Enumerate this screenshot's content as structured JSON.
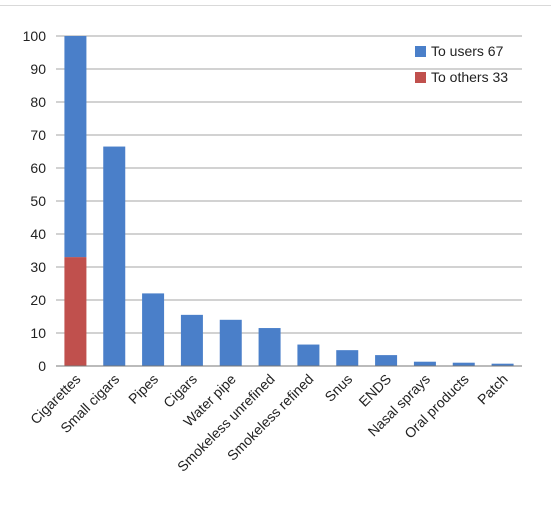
{
  "chart_data": {
    "type": "bar",
    "categories": [
      "Cigarettes",
      "Small cigars",
      "Pipes",
      "Cigars",
      "Water pipe",
      "Smokeless unrefined",
      "Smokeless refined",
      "Snus",
      "ENDS",
      "Nasal sprays",
      "Oral products",
      "Patch"
    ],
    "series": [
      {
        "name": "To users 67",
        "color": "#4a7fc9",
        "values": [
          67,
          66.5,
          22,
          15.5,
          14,
          11.5,
          6.5,
          4.8,
          3.3,
          1.3,
          1.0,
          0.7
        ]
      },
      {
        "name": "To others 33",
        "color": "#c0504d",
        "values": [
          33,
          0,
          0,
          0,
          0,
          0,
          0,
          0,
          0,
          0,
          0,
          0
        ]
      }
    ],
    "stacked": true,
    "stack_order": [
      "To others 33",
      "To users 67"
    ],
    "ylim": [
      0,
      100
    ],
    "yticks": [
      0,
      10,
      20,
      30,
      40,
      50,
      60,
      70,
      80,
      90,
      100
    ],
    "grid": true,
    "legend_position": "top-right",
    "title": "",
    "xlabel": "",
    "ylabel": ""
  }
}
